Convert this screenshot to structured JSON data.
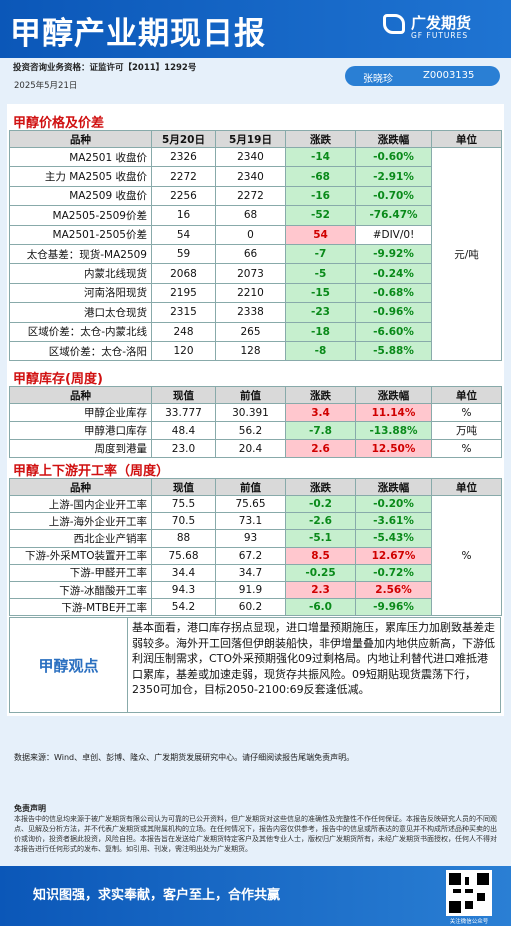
{
  "header": {
    "title": "甲醇产业期现日报",
    "logo_cn": "广发期货",
    "logo_en": "GF FUTURES",
    "qualification": "投资咨询业务资格：证监许可【2011】1292号",
    "date": "2025年5月21日",
    "analyst": "张晓珍",
    "license": "Z0003135"
  },
  "tables": [
    {
      "title": "甲醇价格及价差",
      "columns": [
        "品种",
        "5月20日",
        "5月19日",
        "涨跌",
        "涨跌幅",
        "单位"
      ],
      "unit": "元/吨",
      "rows": [
        [
          "MA2501 收盘价",
          "2326",
          "2340",
          "-14",
          "-0.60%"
        ],
        [
          "主力 MA2505 收盘价",
          "2272",
          "2340",
          "-68",
          "-2.91%"
        ],
        [
          "MA2509 收盘价",
          "2256",
          "2272",
          "-16",
          "-0.70%"
        ],
        [
          "MA2505-2509价差",
          "16",
          "68",
          "-52",
          "-76.47%"
        ],
        [
          "MA2501-2505价差",
          "54",
          "0",
          "54",
          "#DIV/0!"
        ],
        [
          "太仓基差：现货-MA2509",
          "59",
          "66",
          "-7",
          "-9.92%"
        ],
        [
          "内蒙北线现货",
          "2068",
          "2073",
          "-5",
          "-0.24%"
        ],
        [
          "河南洛阳现货",
          "2195",
          "2210",
          "-15",
          "-0.68%"
        ],
        [
          "港口太仓现货",
          "2315",
          "2338",
          "-23",
          "-0.96%"
        ],
        [
          "区域价差：太仓-内蒙北线",
          "248",
          "265",
          "-18",
          "-6.60%"
        ],
        [
          "区域价差：太仓-洛阳",
          "120",
          "128",
          "-8",
          "-5.88%"
        ]
      ]
    },
    {
      "title": "甲醇库存(周度)",
      "columns": [
        "品种",
        "现值",
        "前值",
        "涨跌",
        "涨跌幅",
        "单位"
      ],
      "rows": [
        [
          "甲醇企业库存",
          "33.777",
          "30.391",
          "3.4",
          "11.14%",
          "%"
        ],
        [
          "甲醇港口库存",
          "48.4",
          "56.2",
          "-7.8",
          "-13.88%",
          "万吨"
        ],
        [
          "周度到港量",
          "23.0",
          "20.4",
          "2.6",
          "12.50%",
          "%"
        ]
      ]
    },
    {
      "title": "甲醇上下游开工率（周度）",
      "columns": [
        "品种",
        "现值",
        "前值",
        "涨跌",
        "涨跌幅",
        "单位"
      ],
      "unit": "%",
      "rows": [
        [
          "上游-国内企业开工率",
          "75.5",
          "75.65",
          "-0.2",
          "-0.20%"
        ],
        [
          "上游-海外企业开工率",
          "70.5",
          "73.1",
          "-2.6",
          "-3.61%"
        ],
        [
          "西北企业产销率",
          "88",
          "93",
          "-5.1",
          "-5.43%"
        ],
        [
          "下游-外采MTO装置开工率",
          "75.68",
          "67.2",
          "8.5",
          "12.67%"
        ],
        [
          "下游-甲醛开工率",
          "34.4",
          "34.7",
          "-0.25",
          "-0.72%"
        ],
        [
          "下游-冰醋酸开工率",
          "94.3",
          "91.9",
          "2.3",
          "2.56%"
        ],
        [
          "下游-MTBE开工率",
          "54.2",
          "60.2",
          "-6.0",
          "-9.96%"
        ]
      ]
    }
  ],
  "view": {
    "title": "甲醇观点",
    "text": "基本面看，港口库存拐点显现，进口增量预期施压，累库压力加剧致基差走弱较多。海外开工回落但伊朗装船快，非伊增量叠加内地供应新高，下游低利润压制需求，CTO外采预期强化09过剩格局。内地让利替代进口难抵港口累库，基差或加速走弱，现货存共振风险。09短期贴现货震荡下行，2350可加仓，目标2050-2100:69反套逢低减。"
  },
  "source": "数据来源：Wind、卓创、彭博、隆众、广发期货发展研究中心。请仔细阅读报告尾端免责声明。",
  "disclaimer": {
    "title": "免责声明",
    "text": "本报告中的信息均来源于被广发期货有限公司认为可靠的已公开资料，但广发期货对这些信息的准确性及完整性不作任何保证。本报告反映研究人员的不同观点、见解及分析方法，并不代表广发期货或其附属机构的立场。在任何情况下，报告内容仅供参考，报告中的信息或所表达的意见并不构成所述品种买卖的出价或询价，投资者据此投资，风险自担。本报告旨在发送给广发期货特定客户及其他专业人士，版权归广发期货所有，未经广发期货书面授权，任何人不得对本报告进行任何形式的发布、复制。如引用、刊发，需注明出处为广发期货。"
  },
  "footer": {
    "slogan": "知识图强，求实奉献，客户至上，合作共赢",
    "qr_caption": "关注微信公众号"
  }
}
